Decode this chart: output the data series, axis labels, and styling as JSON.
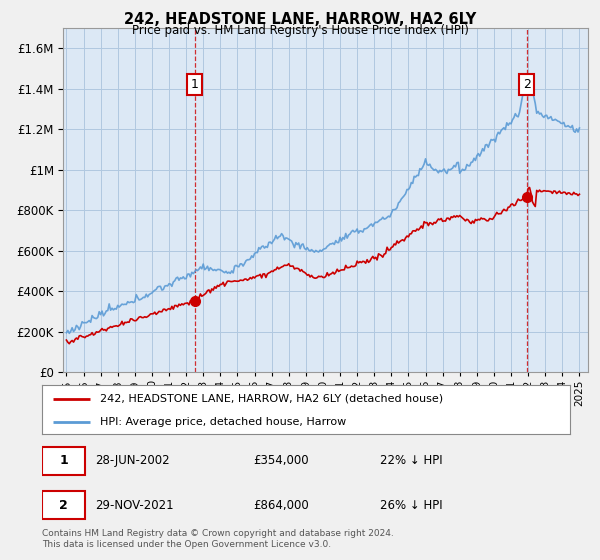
{
  "title": "242, HEADSTONE LANE, HARROW, HA2 6LY",
  "subtitle": "Price paid vs. HM Land Registry's House Price Index (HPI)",
  "ylim": [
    0,
    1700000
  ],
  "yticks": [
    0,
    200000,
    400000,
    600000,
    800000,
    1000000,
    1200000,
    1400000,
    1600000
  ],
  "bg_color": "#f0f0f0",
  "plot_bg_color": "#dce8f5",
  "grid_color": "#b0c8e0",
  "sale1_date": "28-JUN-2002",
  "sale1_price": 354000,
  "sale1_pct": "22%",
  "sale2_date": "29-NOV-2021",
  "sale2_price": 864000,
  "sale2_pct": "26%",
  "legend_line1": "242, HEADSTONE LANE, HARROW, HA2 6LY (detached house)",
  "legend_line2": "HPI: Average price, detached house, Harrow",
  "footer": "Contains HM Land Registry data © Crown copyright and database right 2024.\nThis data is licensed under the Open Government Licence v3.0.",
  "hpi_color": "#5b9bd5",
  "price_color": "#cc0000",
  "dashed_line_color": "#cc0000",
  "label_box_color": "#cc0000",
  "sale1_x": 2002.5,
  "sale2_x": 2021.92
}
